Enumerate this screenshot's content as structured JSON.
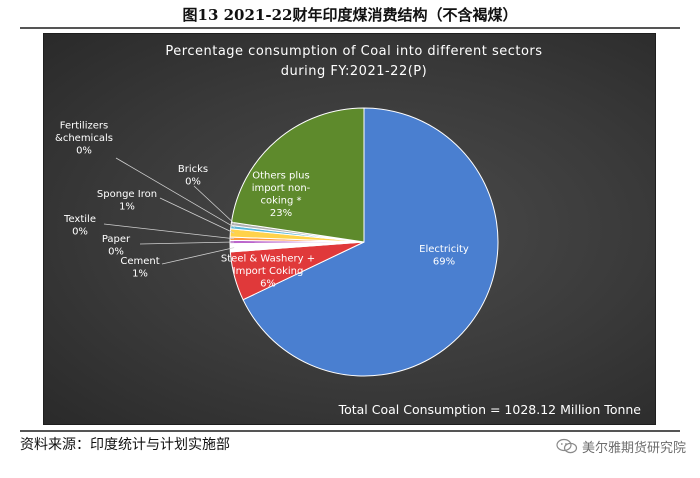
{
  "figure": {
    "title": "图13 2021-22财年印度煤消费结构（不含褐煤）",
    "source": "资料来源：印度统计与计划实施部",
    "watermark": "美尔雅期货研究院"
  },
  "chart_data": {
    "type": "pie",
    "title_lines": [
      "Percentage consumption of Coal into different sectors",
      "during FY:2021-22(P)"
    ],
    "annotation": "Total Coal Consumption = 1028.12 Million Tonne",
    "slices": [
      {
        "label_lines": [
          "Electricity",
          "69%"
        ],
        "value": 69,
        "color": "#4a7fd0"
      },
      {
        "label_lines": [
          "Steel  & Washery +",
          "Import Coking",
          "6%"
        ],
        "value": 6,
        "color": "#e0393a"
      },
      {
        "label_lines": [
          "Cement",
          "1%"
        ],
        "value": 1,
        "color": "#ffffff"
      },
      {
        "label_lines": [
          "Paper",
          "0%"
        ],
        "value": 0.4,
        "color": "#bb66cc"
      },
      {
        "label_lines": [
          "Textile",
          "0%"
        ],
        "value": 0.4,
        "color": "#ff9a3c"
      },
      {
        "label_lines": [
          "Sponge Iron",
          "1%"
        ],
        "value": 1,
        "color": "#ffd24a"
      },
      {
        "label_lines": [
          "Fertilizers",
          "&chemicals",
          "0%"
        ],
        "value": 0.4,
        "color": "#58b6d8"
      },
      {
        "label_lines": [
          "Bricks",
          "0%"
        ],
        "value": 0.4,
        "color": "#b0b0b0"
      },
      {
        "label_lines": [
          "Others plus",
          "import non-",
          "coking *",
          "23%"
        ],
        "value": 23,
        "color": "#5e8a2c"
      }
    ]
  }
}
